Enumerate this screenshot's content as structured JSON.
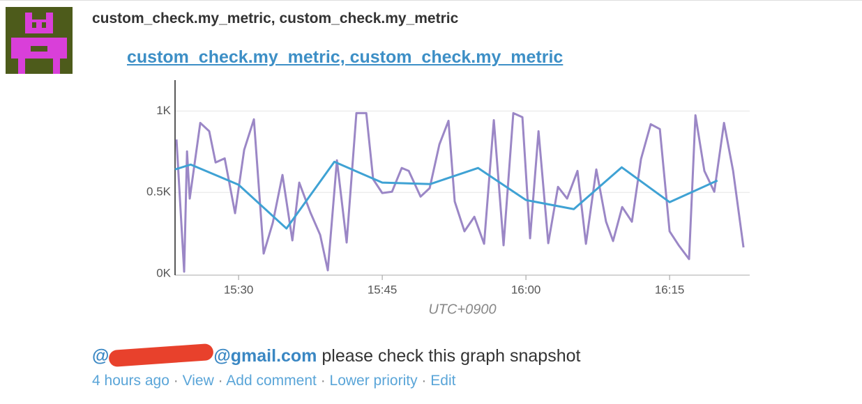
{
  "event": {
    "title": "custom_check.my_metric, custom_check.my_metric",
    "link": "custom_check.my_metric, custom_check.my_metric"
  },
  "chart_data": {
    "type": "line",
    "x_label": "UTC+0900",
    "xlim": [
      "15:23:22",
      "16:23:22"
    ],
    "xticks": [
      "15:30",
      "15:45",
      "16:00",
      "16:15"
    ],
    "ylim": [
      0,
      1190
    ],
    "yticks": [
      {
        "value": 0,
        "label": "0K"
      },
      {
        "value": 500,
        "label": "0.5K"
      },
      {
        "value": 1000,
        "label": "1K"
      }
    ],
    "grid": true,
    "series": [
      {
        "color": "#9b87c6",
        "x": [
          "15:23:31",
          "15:24:19",
          "15:24:37",
          "15:24:54",
          "15:26:00",
          "15:26:56",
          "15:27:36",
          "15:28:33",
          "15:29:38",
          "15:30:35",
          "15:31:36",
          "15:32:37",
          "15:33:34",
          "15:34:35",
          "15:35:37",
          "15:36:20",
          "15:37:30",
          "15:38:31",
          "15:39:19",
          "15:40:16",
          "15:41:17",
          "15:42:18",
          "15:43:20",
          "15:44:03",
          "15:45:00",
          "15:46:01",
          "15:47:02",
          "15:47:46",
          "15:49:00",
          "15:49:57",
          "15:50:58",
          "15:51:55",
          "15:52:34",
          "15:53:35",
          "15:54:37",
          "15:55:38",
          "15:56:39",
          "15:57:40",
          "15:58:41",
          "15:59:38",
          "16:00:26",
          "16:01:19",
          "16:02:20",
          "16:03:21",
          "16:04:18",
          "16:05:23",
          "16:06:16",
          "16:07:21",
          "16:08:22",
          "16:09:06",
          "16:10:03",
          "16:11:04",
          "16:12:01",
          "16:13:02",
          "16:13:59",
          "16:15:00",
          "16:15:57",
          "16:17:02",
          "16:17:42",
          "16:18:38",
          "16:19:40",
          "16:20:41",
          "16:21:38",
          "16:22:43"
        ],
        "values": [
          825,
          13,
          752,
          462,
          927,
          876,
          684,
          709,
          372,
          761,
          949,
          124,
          312,
          607,
          205,
          560,
          376,
          239,
          21,
          697,
          192,
          987,
          987,
          581,
          496,
          504,
          650,
          632,
          474,
          526,
          795,
          940,
          444,
          261,
          350,
          184,
          944,
          175,
          987,
          962,
          218,
          876,
          188,
          534,
          462,
          632,
          184,
          641,
          320,
          201,
          410,
          320,
          705,
          919,
          889,
          261,
          175,
          90,
          974,
          632,
          504,
          927,
          632,
          162
        ]
      },
      {
        "color": "#3fa2d4",
        "x": [
          "15:23:22",
          "15:25:00",
          "15:30:00",
          "15:35:00",
          "15:40:00",
          "15:45:00",
          "15:50:00",
          "15:55:00",
          "16:00:00",
          "16:05:00",
          "16:10:00",
          "16:15:00",
          "16:20:00"
        ],
        "values": [
          641,
          671,
          547,
          278,
          688,
          560,
          551,
          650,
          453,
          397,
          654,
          440,
          573
        ]
      }
    ]
  },
  "comment": {
    "mention_start": "@",
    "mention_end": "@gmail.com",
    "text": "please check this graph snapshot"
  },
  "actions": {
    "separator": "·",
    "time": "4 hours ago",
    "view": "View",
    "add_comment": "Add comment",
    "lower_priority": "Lower priority",
    "edit": "Edit"
  }
}
